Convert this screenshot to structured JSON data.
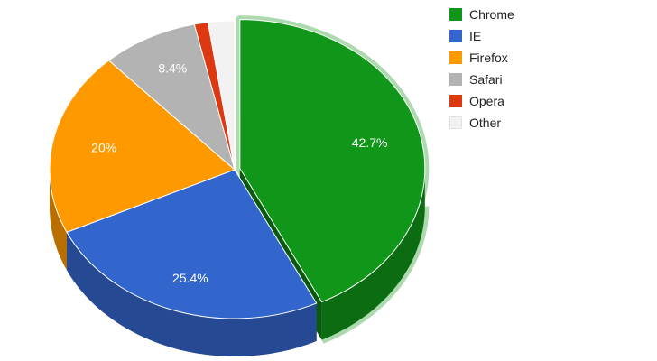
{
  "chart_data": {
    "type": "pie",
    "is_3d": true,
    "categories": [
      "Chrome",
      "IE",
      "Firefox",
      "Safari",
      "Opera",
      "Other"
    ],
    "values": [
      42.7,
      25.4,
      20.0,
      8.4,
      1.2,
      2.3
    ],
    "value_labels": [
      "42.7%",
      "25.4%",
      "20%",
      "8.4%",
      "",
      ""
    ],
    "colors": [
      "#109618",
      "#3366cc",
      "#ff9900",
      "#b3b3b3",
      "#dc3912",
      "#f2f2f2"
    ],
    "exploded_slice": "Chrome",
    "legend_position": "right"
  },
  "legend": {
    "items": [
      {
        "label": "Chrome",
        "color": "#109618"
      },
      {
        "label": "IE",
        "color": "#3366cc"
      },
      {
        "label": "Firefox",
        "color": "#ff9900"
      },
      {
        "label": "Safari",
        "color": "#b3b3b3"
      },
      {
        "label": "Opera",
        "color": "#dc3912"
      },
      {
        "label": "Other",
        "color": "#f2f2f2"
      }
    ]
  }
}
